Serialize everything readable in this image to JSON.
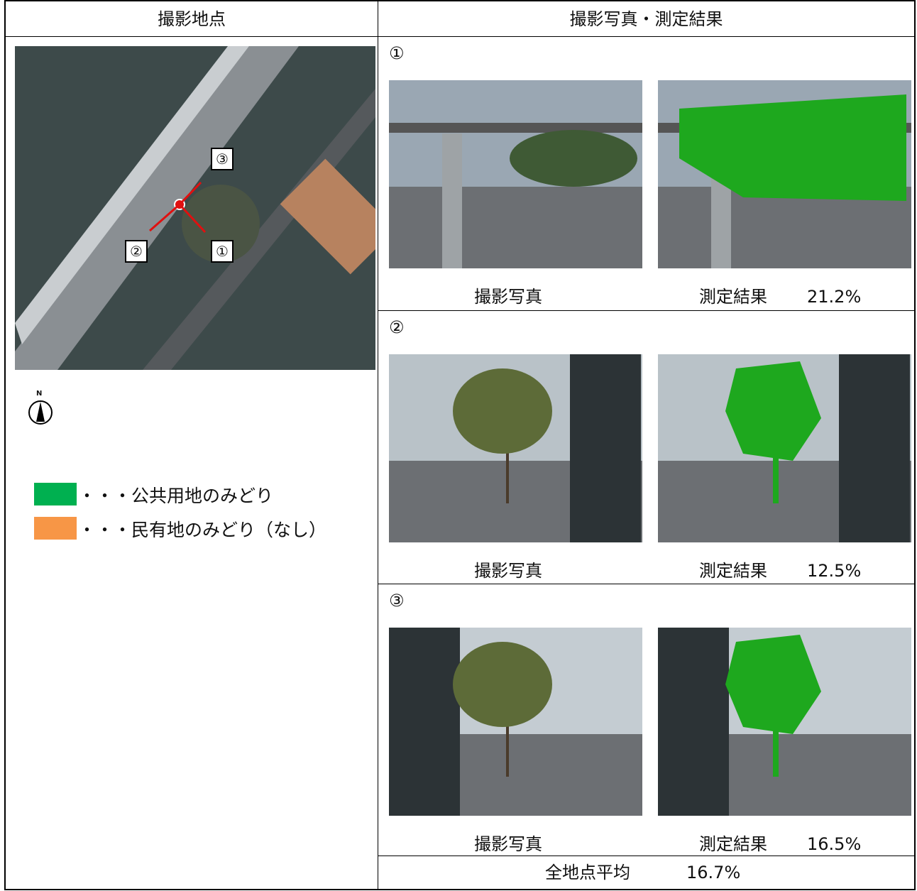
{
  "header": [
    "撮影地点",
    "撮影写真・測定結果"
  ],
  "map": {
    "markers": [
      "③",
      "②",
      "①"
    ],
    "compass": "N"
  },
  "legend": [
    {
      "label": "・・・公共用地のみどり",
      "color": "#00b050"
    },
    {
      "label": "・・・民有地のみどり（なし）",
      "color": "#f79646"
    }
  ],
  "sections": [
    {
      "number": "①",
      "photo_label": "撮影写真",
      "result_label": "測定結果",
      "result": "21.2%"
    },
    {
      "number": "②",
      "photo_label": "撮影写真",
      "result_label": "測定結果",
      "result": "12.5%"
    },
    {
      "number": "③",
      "photo_label": "撮影写真",
      "result_label": "測定結果",
      "result": "16.5%"
    }
  ],
  "footer": {
    "label": "全地点平均",
    "value": "16.7%"
  }
}
